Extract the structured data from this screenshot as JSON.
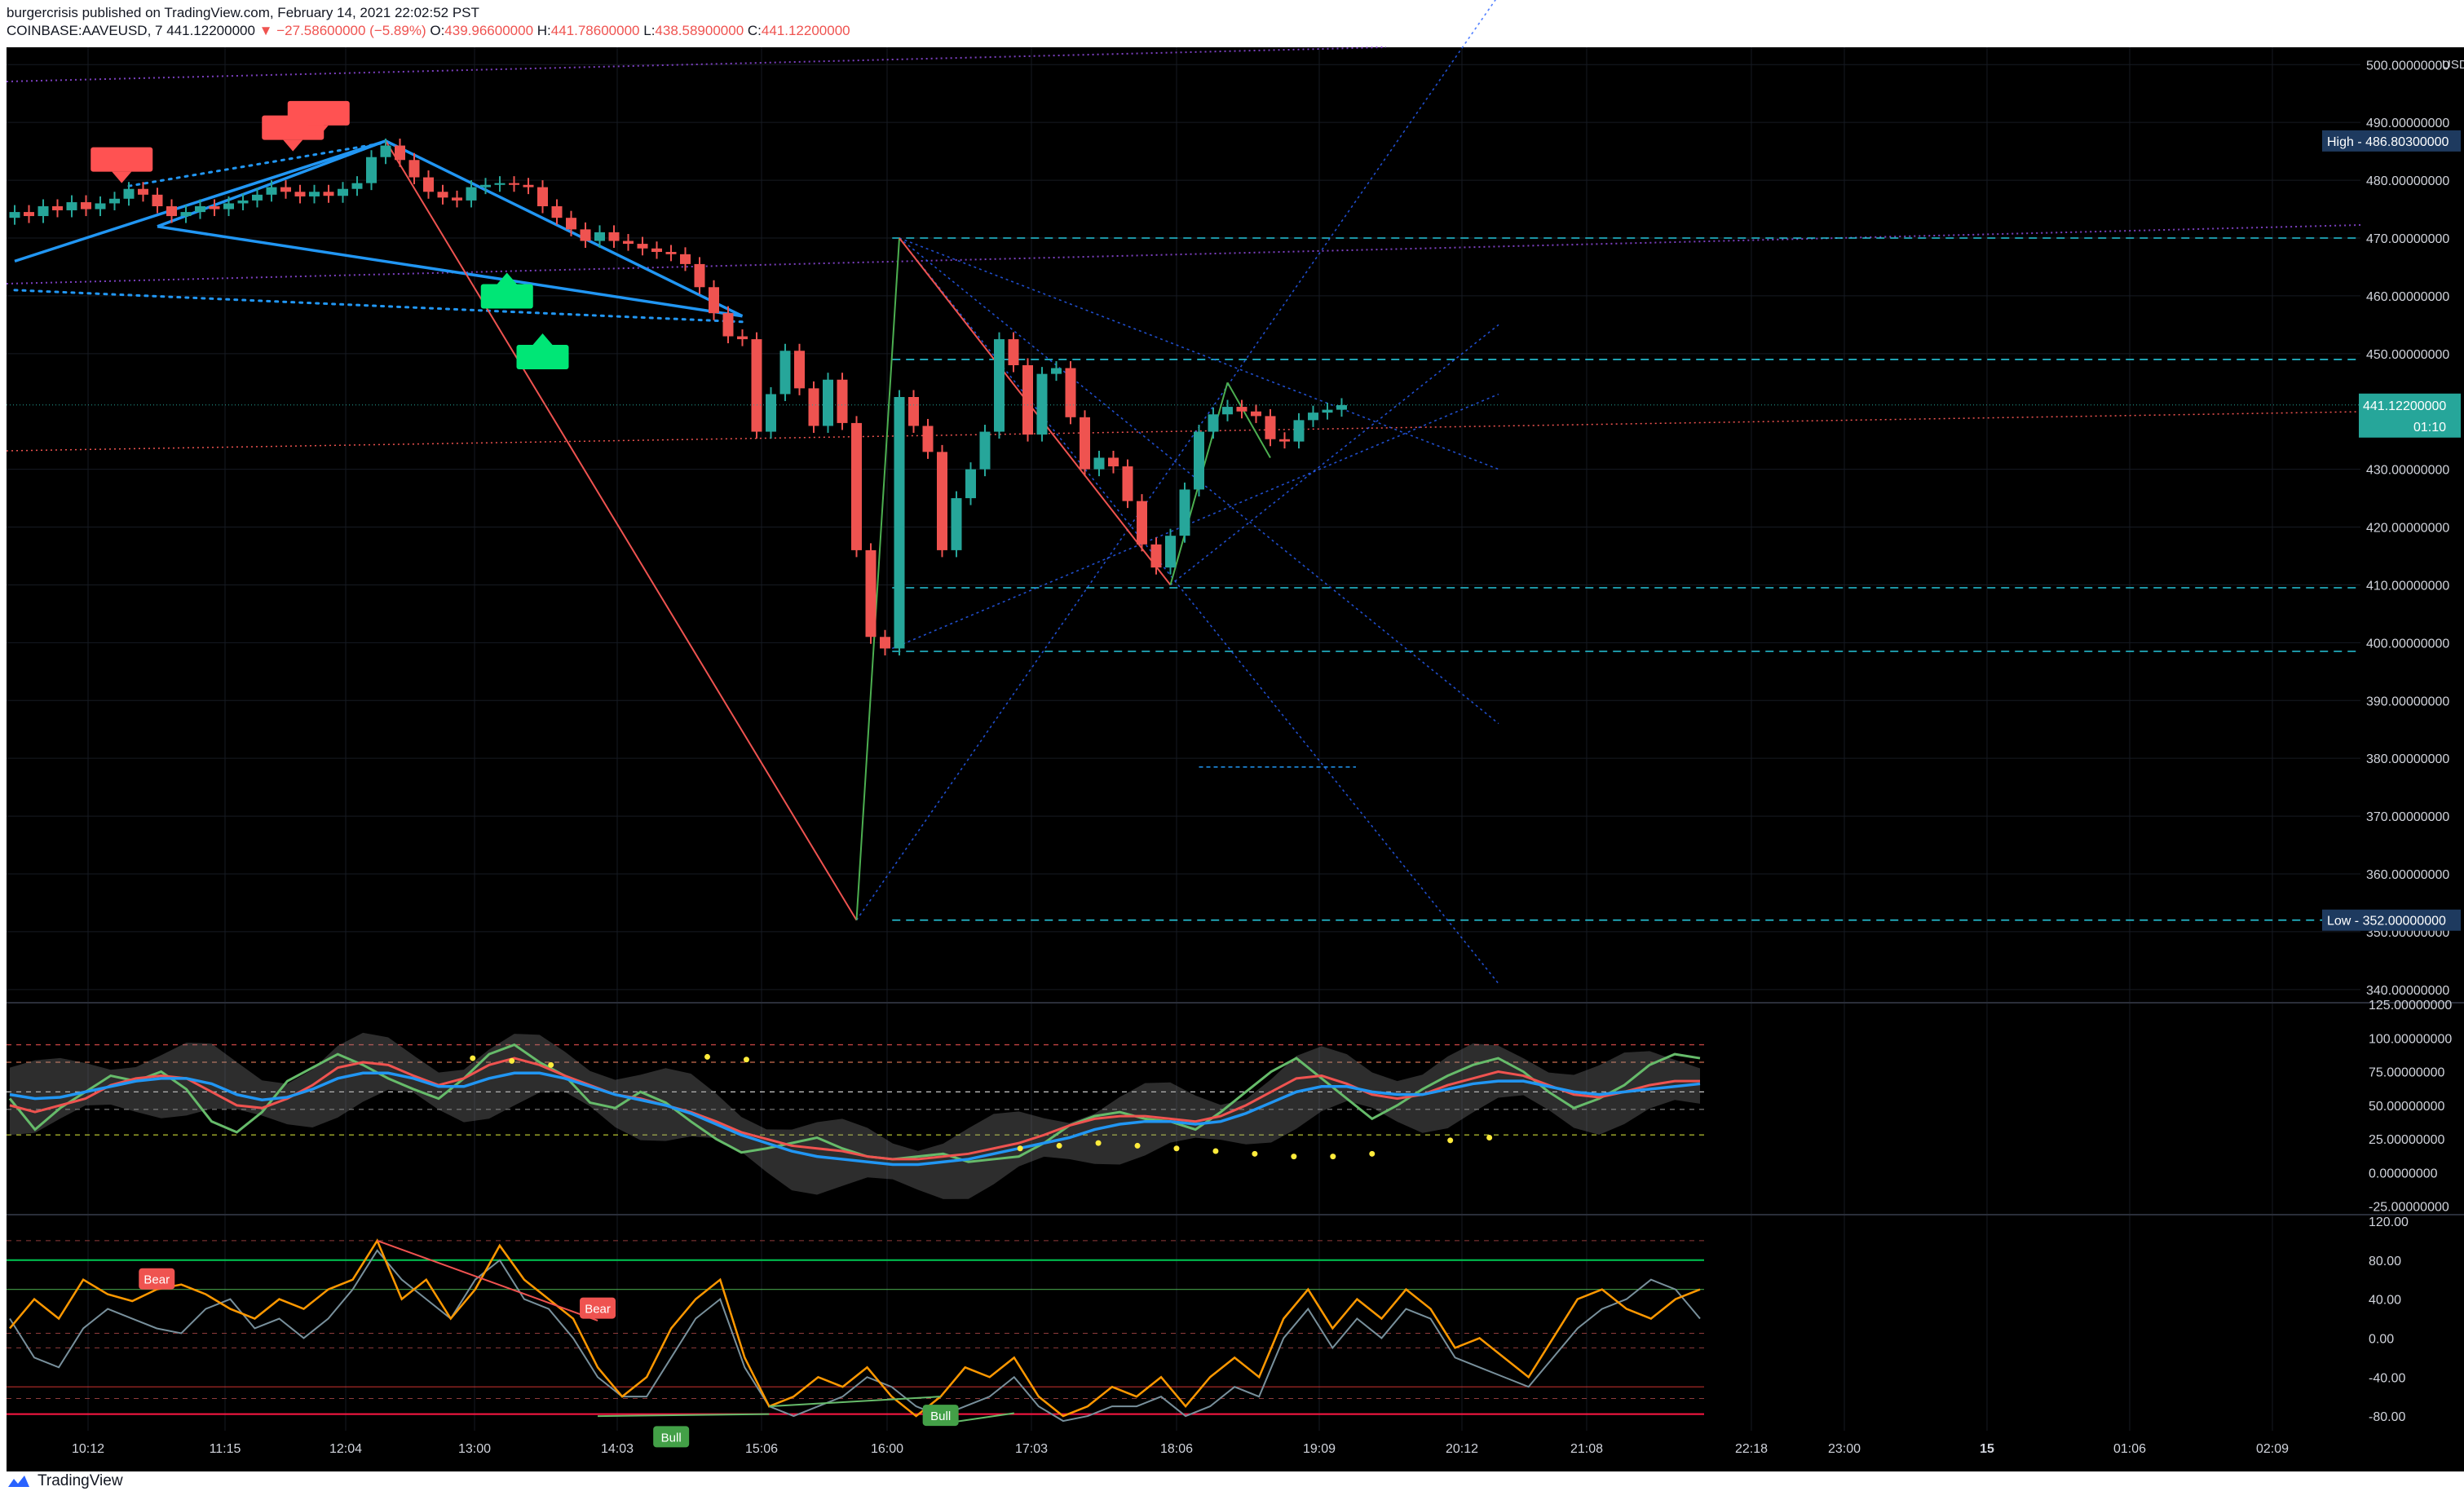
{
  "header": {
    "publish_line": "burgercrisis published on TradingView.com, February 14, 2021 22:02:52 PST",
    "symbol": "COINBASE:AAVEUSD, 7",
    "last": "441.12200000",
    "change": "−27.58600000 (−5.89%)",
    "o_label": "O:",
    "o": "439.96600000",
    "h_label": "H:",
    "h": "441.78600000",
    "l_label": "L:",
    "l": "438.58900000",
    "c_label": "C:",
    "c": "441.12200000"
  },
  "footer": {
    "brand": "TradingView"
  },
  "colors": {
    "bg": "#000000",
    "up": "#26a69a",
    "down": "#ef5350",
    "trend": "#2196f3",
    "grid": "#161a22"
  },
  "price_axis": {
    "currency": "USD",
    "ticks": [
      "500.00000000",
      "490.00000000",
      "480.00000000",
      "470.00000000",
      "460.00000000",
      "450.00000000",
      "430.00000000",
      "420.00000000",
      "410.00000000",
      "400.00000000",
      "390.00000000",
      "380.00000000",
      "370.00000000",
      "360.00000000",
      "350.00000000",
      "340.00000000"
    ],
    "high_label": "High - 486.80300000",
    "low_label": "Low - 352.00000000",
    "last_label": "441.12200000",
    "countdown": "01:10"
  },
  "time_axis": {
    "ticks": [
      "10:12",
      "11:15",
      "12:04",
      "13:00",
      "14:03",
      "15:06",
      "16:00",
      "17:03",
      "18:06",
      "19:09",
      "20:12",
      "21:08",
      "22:18",
      "23:00",
      "15",
      "01:06",
      "02:09"
    ]
  },
  "osc1_axis": {
    "ticks": [
      "125.00000000",
      "100.00000000",
      "75.00000000",
      "50.00000000",
      "25.00000000",
      "0.00000000",
      "-25.00000000"
    ]
  },
  "osc2_axis": {
    "ticks": [
      "120.00",
      "80.00",
      "40.00",
      "0.00",
      "-40.00",
      "-80.00"
    ]
  },
  "markers": {
    "bear": "Bear",
    "bull": "Bull"
  },
  "chart_data": {
    "type": "candlestick",
    "symbol": "COINBASE:AAVEUSD",
    "interval": "7",
    "y_range": [
      338,
      503
    ],
    "candles": [
      {
        "t": 0,
        "o": 473.5,
        "c": 474.5
      },
      {
        "t": 1,
        "o": 474.5,
        "c": 473.8
      },
      {
        "t": 2,
        "o": 473.8,
        "c": 475.5
      },
      {
        "t": 3,
        "o": 475.5,
        "c": 474.8
      },
      {
        "t": 4,
        "o": 474.8,
        "c": 476.2
      },
      {
        "t": 5,
        "o": 476.2,
        "c": 475.0
      },
      {
        "t": 6,
        "o": 475.0,
        "c": 476.0
      },
      {
        "t": 7,
        "o": 476.0,
        "c": 476.8
      },
      {
        "t": 8,
        "o": 476.8,
        "c": 478.5
      },
      {
        "t": 9,
        "o": 478.5,
        "c": 477.5
      },
      {
        "t": 10,
        "o": 477.5,
        "c": 475.5
      },
      {
        "t": 11,
        "o": 475.5,
        "c": 473.8
      },
      {
        "t": 12,
        "o": 473.8,
        "c": 474.5
      },
      {
        "t": 13,
        "o": 474.5,
        "c": 475.5
      },
      {
        "t": 14,
        "o": 475.5,
        "c": 475.0
      },
      {
        "t": 15,
        "o": 475.0,
        "c": 476.0
      },
      {
        "t": 16,
        "o": 476.0,
        "c": 476.5
      },
      {
        "t": 17,
        "o": 476.5,
        "c": 477.5
      },
      {
        "t": 18,
        "o": 477.5,
        "c": 478.8
      },
      {
        "t": 19,
        "o": 478.8,
        "c": 478.0
      },
      {
        "t": 20,
        "o": 478.0,
        "c": 477.2
      },
      {
        "t": 21,
        "o": 477.2,
        "c": 478.0
      },
      {
        "t": 22,
        "o": 478.0,
        "c": 477.3
      },
      {
        "t": 23,
        "o": 477.3,
        "c": 478.5
      },
      {
        "t": 24,
        "o": 478.5,
        "c": 479.5
      },
      {
        "t": 25,
        "o": 479.5,
        "c": 484.0
      },
      {
        "t": 26,
        "o": 484.0,
        "c": 486.0
      },
      {
        "t": 27,
        "o": 486.0,
        "c": 483.5
      },
      {
        "t": 28,
        "o": 483.5,
        "c": 480.5
      },
      {
        "t": 29,
        "o": 480.5,
        "c": 478.0
      },
      {
        "t": 30,
        "o": 478.0,
        "c": 477.0
      },
      {
        "t": 31,
        "o": 477.0,
        "c": 476.5
      },
      {
        "t": 32,
        "o": 476.5,
        "c": 478.8
      },
      {
        "t": 33,
        "o": 478.8,
        "c": 479.2
      },
      {
        "t": 34,
        "o": 479.2,
        "c": 479.5
      },
      {
        "t": 35,
        "o": 479.5,
        "c": 479.2
      },
      {
        "t": 36,
        "o": 479.2,
        "c": 478.8
      },
      {
        "t": 37,
        "o": 478.8,
        "c": 475.5
      },
      {
        "t": 38,
        "o": 475.5,
        "c": 473.5
      },
      {
        "t": 39,
        "o": 473.5,
        "c": 471.5
      },
      {
        "t": 40,
        "o": 471.5,
        "c": 469.5
      },
      {
        "t": 41,
        "o": 469.5,
        "c": 471.0
      },
      {
        "t": 42,
        "o": 471.0,
        "c": 469.5
      },
      {
        "t": 43,
        "o": 469.5,
        "c": 469.0
      },
      {
        "t": 44,
        "o": 469.0,
        "c": 468.2
      },
      {
        "t": 45,
        "o": 468.2,
        "c": 467.6
      },
      {
        "t": 46,
        "o": 467.6,
        "c": 467.2
      },
      {
        "t": 47,
        "o": 467.2,
        "c": 465.5
      },
      {
        "t": 48,
        "o": 465.5,
        "c": 461.5
      },
      {
        "t": 49,
        "o": 461.5,
        "c": 457.0
      },
      {
        "t": 50,
        "o": 457.0,
        "c": 453.0
      },
      {
        "t": 51,
        "o": 453.0,
        "c": 452.5
      },
      {
        "t": 52,
        "o": 452.5,
        "c": 436.5
      },
      {
        "t": 53,
        "o": 436.5,
        "c": 443.0
      },
      {
        "t": 54,
        "o": 443.0,
        "c": 450.5
      },
      {
        "t": 55,
        "o": 450.5,
        "c": 444.0
      },
      {
        "t": 56,
        "o": 444.0,
        "c": 437.5
      },
      {
        "t": 57,
        "o": 437.5,
        "c": 445.5
      },
      {
        "t": 58,
        "o": 445.5,
        "c": 438.0
      },
      {
        "t": 59,
        "o": 438.0,
        "c": 416.0
      },
      {
        "t": 60,
        "o": 416.0,
        "c": 401.0
      },
      {
        "t": 61,
        "o": 401.0,
        "c": 399.0
      },
      {
        "t": 62,
        "o": 399.0,
        "c": 442.5
      },
      {
        "t": 63,
        "o": 442.5,
        "c": 437.5
      },
      {
        "t": 64,
        "o": 437.5,
        "c": 433.0
      },
      {
        "t": 65,
        "o": 433.0,
        "c": 416.0
      },
      {
        "t": 66,
        "o": 416.0,
        "c": 425.0
      },
      {
        "t": 67,
        "o": 425.0,
        "c": 430.0
      },
      {
        "t": 68,
        "o": 430.0,
        "c": 436.5
      },
      {
        "t": 69,
        "o": 436.5,
        "c": 452.5
      },
      {
        "t": 70,
        "o": 452.5,
        "c": 448.0
      },
      {
        "t": 71,
        "o": 448.0,
        "c": 436.0
      },
      {
        "t": 72,
        "o": 436.0,
        "c": 446.5
      },
      {
        "t": 73,
        "o": 446.5,
        "c": 447.5
      },
      {
        "t": 74,
        "o": 447.5,
        "c": 439.0
      },
      {
        "t": 75,
        "o": 439.0,
        "c": 430.0
      },
      {
        "t": 76,
        "o": 430.0,
        "c": 432.0
      },
      {
        "t": 77,
        "o": 432.0,
        "c": 430.5
      },
      {
        "t": 78,
        "o": 430.5,
        "c": 424.5
      },
      {
        "t": 79,
        "o": 424.5,
        "c": 417.0
      },
      {
        "t": 80,
        "o": 417.0,
        "c": 413.0
      },
      {
        "t": 81,
        "o": 413.0,
        "c": 418.5
      },
      {
        "t": 82,
        "o": 418.5,
        "c": 426.5
      },
      {
        "t": 83,
        "o": 426.5,
        "c": 436.5
      },
      {
        "t": 84,
        "o": 436.5,
        "c": 439.5
      },
      {
        "t": 85,
        "o": 439.5,
        "c": 440.8
      },
      {
        "t": 86,
        "o": 440.8,
        "c": 440.0
      },
      {
        "t": 87,
        "o": 440.0,
        "c": 439.2
      },
      {
        "t": 88,
        "o": 439.2,
        "c": 435.2
      },
      {
        "t": 89,
        "o": 435.2,
        "c": 434.8
      },
      {
        "t": 90,
        "o": 434.8,
        "c": 438.5
      },
      {
        "t": 91,
        "o": 438.5,
        "c": 439.8
      },
      {
        "t": 92,
        "o": 439.8,
        "c": 440.3
      },
      {
        "t": 93,
        "o": 440.3,
        "c": 441.1
      }
    ],
    "pivot_lines": [
      {
        "kind": "solid",
        "from": [
          0,
          466
        ],
        "to": [
          26,
          486.8
        ]
      },
      {
        "kind": "solid",
        "from": [
          10,
          472
        ],
        "to": [
          26,
          486.8
        ]
      },
      {
        "kind": "solid",
        "from": [
          26,
          486.8
        ],
        "to": [
          51,
          456.5
        ]
      },
      {
        "kind": "solid",
        "from": [
          10,
          472
        ],
        "to": [
          51,
          456.5
        ]
      },
      {
        "kind": "dotted",
        "from": [
          0,
          461
        ],
        "to": [
          51,
          455.5
        ]
      },
      {
        "kind": "dotted",
        "from": [
          8,
          479
        ],
        "to": [
          26,
          486.5
        ]
      }
    ],
    "zigzag": [
      {
        "from": [
          26,
          486.8
        ],
        "to": [
          59,
          352
        ],
        "color": "#ef5350"
      },
      {
        "from": [
          59,
          352
        ],
        "to": [
          62,
          470
        ],
        "color": "#4caf50"
      },
      {
        "from": [
          62,
          470
        ],
        "to": [
          81,
          410
        ],
        "color": "#ef5350"
      },
      {
        "from": [
          81,
          410
        ],
        "to": [
          85,
          445
        ],
        "color": "#4caf50"
      },
      {
        "from": [
          85,
          445
        ],
        "to": [
          88,
          432
        ],
        "color": "#4caf50"
      }
    ],
    "fib_levels": [
      470.0,
      449.0,
      409.5,
      398.5,
      352.0
    ],
    "volume_profile_line": 378.5,
    "high": 486.803,
    "low": 352.0,
    "last": 441.122,
    "oscillator1": {
      "range": [
        -30,
        125
      ],
      "green": [
        55,
        32,
        48,
        60,
        72,
        68,
        75,
        62,
        38,
        30,
        45,
        68,
        78,
        88,
        80,
        70,
        62,
        55,
        70,
        88,
        95,
        82,
        72,
        52,
        48,
        60,
        52,
        38,
        25,
        15,
        18,
        22,
        26,
        18,
        12,
        10,
        12,
        14,
        8,
        10,
        12,
        22,
        35,
        42,
        45,
        40,
        38,
        32,
        45,
        60,
        75,
        85,
        70,
        55,
        40,
        50,
        62,
        72,
        80,
        85,
        75,
        60,
        48,
        55,
        65,
        80,
        88,
        85
      ],
      "red": [
        50,
        45,
        50,
        55,
        65,
        70,
        72,
        70,
        60,
        50,
        48,
        55,
        65,
        78,
        82,
        80,
        72,
        65,
        70,
        80,
        85,
        80,
        72,
        65,
        58,
        55,
        50,
        45,
        38,
        30,
        25,
        20,
        18,
        16,
        12,
        10,
        10,
        12,
        14,
        18,
        22,
        28,
        35,
        40,
        42,
        42,
        40,
        38,
        42,
        50,
        60,
        70,
        72,
        66,
        58,
        55,
        58,
        65,
        70,
        75,
        72,
        65,
        58,
        56,
        60,
        65,
        68,
        68
      ],
      "blue": [
        58,
        55,
        56,
        60,
        64,
        68,
        70,
        70,
        66,
        58,
        54,
        56,
        62,
        70,
        74,
        74,
        70,
        64,
        64,
        70,
        74,
        74,
        70,
        64,
        58,
        54,
        50,
        44,
        36,
        28,
        22,
        16,
        12,
        10,
        8,
        6,
        6,
        8,
        10,
        14,
        18,
        22,
        26,
        32,
        36,
        38,
        38,
        36,
        38,
        44,
        52,
        60,
        64,
        64,
        60,
        58,
        58,
        62,
        66,
        68,
        68,
        64,
        60,
        58,
        60,
        62,
        64,
        66
      ]
    },
    "oscillator2": {
      "range": [
        -95,
        125
      ],
      "orange": [
        10,
        40,
        20,
        60,
        45,
        38,
        50,
        55,
        45,
        30,
        20,
        40,
        30,
        50,
        60,
        100,
        40,
        60,
        20,
        50,
        95,
        60,
        40,
        20,
        -30,
        -60,
        -40,
        10,
        40,
        60,
        -20,
        -70,
        -60,
        -40,
        -50,
        -30,
        -60,
        -80,
        -60,
        -30,
        -40,
        -20,
        -60,
        -80,
        -70,
        -50,
        -60,
        -40,
        -70,
        -40,
        -20,
        -40,
        20,
        50,
        10,
        40,
        20,
        50,
        30,
        -10,
        0,
        -20,
        -40,
        0,
        40,
        50,
        30,
        20,
        40,
        50
      ],
      "gray": [
        20,
        -20,
        -30,
        10,
        30,
        20,
        10,
        5,
        30,
        40,
        10,
        20,
        0,
        20,
        50,
        90,
        60,
        40,
        20,
        60,
        80,
        40,
        30,
        0,
        -40,
        -60,
        -60,
        -20,
        20,
        40,
        -30,
        -70,
        -80,
        -70,
        -60,
        -40,
        -50,
        -70,
        -80,
        -70,
        -60,
        -40,
        -70,
        -85,
        -80,
        -70,
        -70,
        -60,
        -80,
        -70,
        -50,
        -60,
        0,
        30,
        -10,
        20,
        0,
        30,
        20,
        -20,
        -30,
        -40,
        -50,
        -20,
        10,
        30,
        40,
        60,
        50,
        20
      ],
      "levels": [
        80,
        50,
        -50,
        -78
      ]
    }
  }
}
